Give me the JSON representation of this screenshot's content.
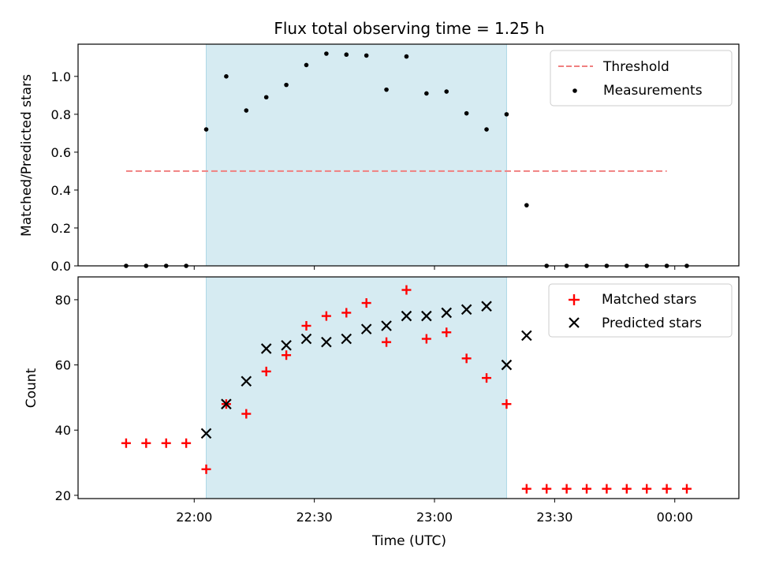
{
  "chart_data": [
    {
      "type": "scatter",
      "title": "Flux total observing time = 1.25 h",
      "ylabel": "Matched/Predicted stars",
      "ylim": [
        0,
        1.17
      ],
      "yticks": [
        "0.0",
        "0.2",
        "0.4",
        "0.6",
        "0.8",
        "1.0"
      ],
      "yticks_values": [
        0,
        0.2,
        0.4,
        0.6,
        0.8,
        1.0
      ],
      "shaded_span": [
        "22:03",
        "23:18"
      ],
      "legend_position": "upper right",
      "series": [
        {
          "name": "Threshold",
          "style": "dashed-line",
          "color": "#f08080",
          "x": [
            "21:43",
            "23:58"
          ],
          "values": [
            0.5,
            0.5
          ]
        },
        {
          "name": "Measurements",
          "style": "dot",
          "color": "#000000",
          "x": [
            "21:43",
            "21:48",
            "21:53",
            "21:58",
            "22:03",
            "22:08",
            "22:13",
            "22:18",
            "22:23",
            "22:28",
            "22:33",
            "22:38",
            "22:43",
            "22:48",
            "22:53",
            "22:58",
            "23:03",
            "23:08",
            "23:13",
            "23:18",
            "23:23",
            "23:28",
            "23:33",
            "23:38",
            "23:43",
            "23:48",
            "23:53",
            "23:58",
            "00:03"
          ],
          "values": [
            0.0,
            0.0,
            0.0,
            0.0,
            0.72,
            1.0,
            0.82,
            0.89,
            0.955,
            1.06,
            1.12,
            1.115,
            1.11,
            0.93,
            1.105,
            0.91,
            0.92,
            0.805,
            0.72,
            0.8,
            0.32,
            0.0,
            0.0,
            0.0,
            0.0,
            0.0,
            0.0,
            0.0,
            0.0
          ]
        }
      ]
    },
    {
      "type": "scatter",
      "xlabel": "Time (UTC)",
      "ylabel": "Count",
      "ylim": [
        19,
        87
      ],
      "yticks": [
        "20",
        "40",
        "60",
        "80"
      ],
      "yticks_values": [
        20,
        40,
        60,
        80
      ],
      "xticks": [
        "22:00",
        "22:30",
        "23:00",
        "23:30",
        "00:00"
      ],
      "shaded_span": [
        "22:03",
        "23:18"
      ],
      "legend_position": "upper right",
      "series": [
        {
          "name": "Matched stars",
          "style": "plus",
          "color": "#ff0000",
          "x": [
            "21:43",
            "21:48",
            "21:53",
            "21:58",
            "22:03",
            "22:08",
            "22:13",
            "22:18",
            "22:23",
            "22:28",
            "22:33",
            "22:38",
            "22:43",
            "22:48",
            "22:53",
            "22:58",
            "23:03",
            "23:08",
            "23:13",
            "23:18",
            "23:23",
            "23:28",
            "23:33",
            "23:38",
            "23:43",
            "23:48",
            "23:53",
            "23:58",
            "00:03"
          ],
          "values": [
            36,
            36,
            36,
            36,
            28,
            48,
            45,
            58,
            63,
            72,
            75,
            76,
            79,
            67,
            83,
            68,
            70,
            62,
            56,
            48,
            22,
            22,
            22,
            22,
            22,
            22,
            22,
            22,
            22
          ]
        },
        {
          "name": "Predicted stars",
          "style": "x",
          "color": "#000000",
          "x": [
            "22:03",
            "22:08",
            "22:13",
            "22:18",
            "22:23",
            "22:28",
            "22:33",
            "22:38",
            "22:43",
            "22:48",
            "22:53",
            "22:58",
            "23:03",
            "23:08",
            "23:13",
            "23:18",
            "23:23"
          ],
          "values": [
            39,
            48,
            55,
            65,
            66,
            68,
            67,
            68,
            71,
            72,
            75,
            75,
            76,
            77,
            78,
            60,
            69
          ]
        }
      ]
    }
  ],
  "colors": {
    "span": "#add8e6",
    "axis": "#000000"
  }
}
